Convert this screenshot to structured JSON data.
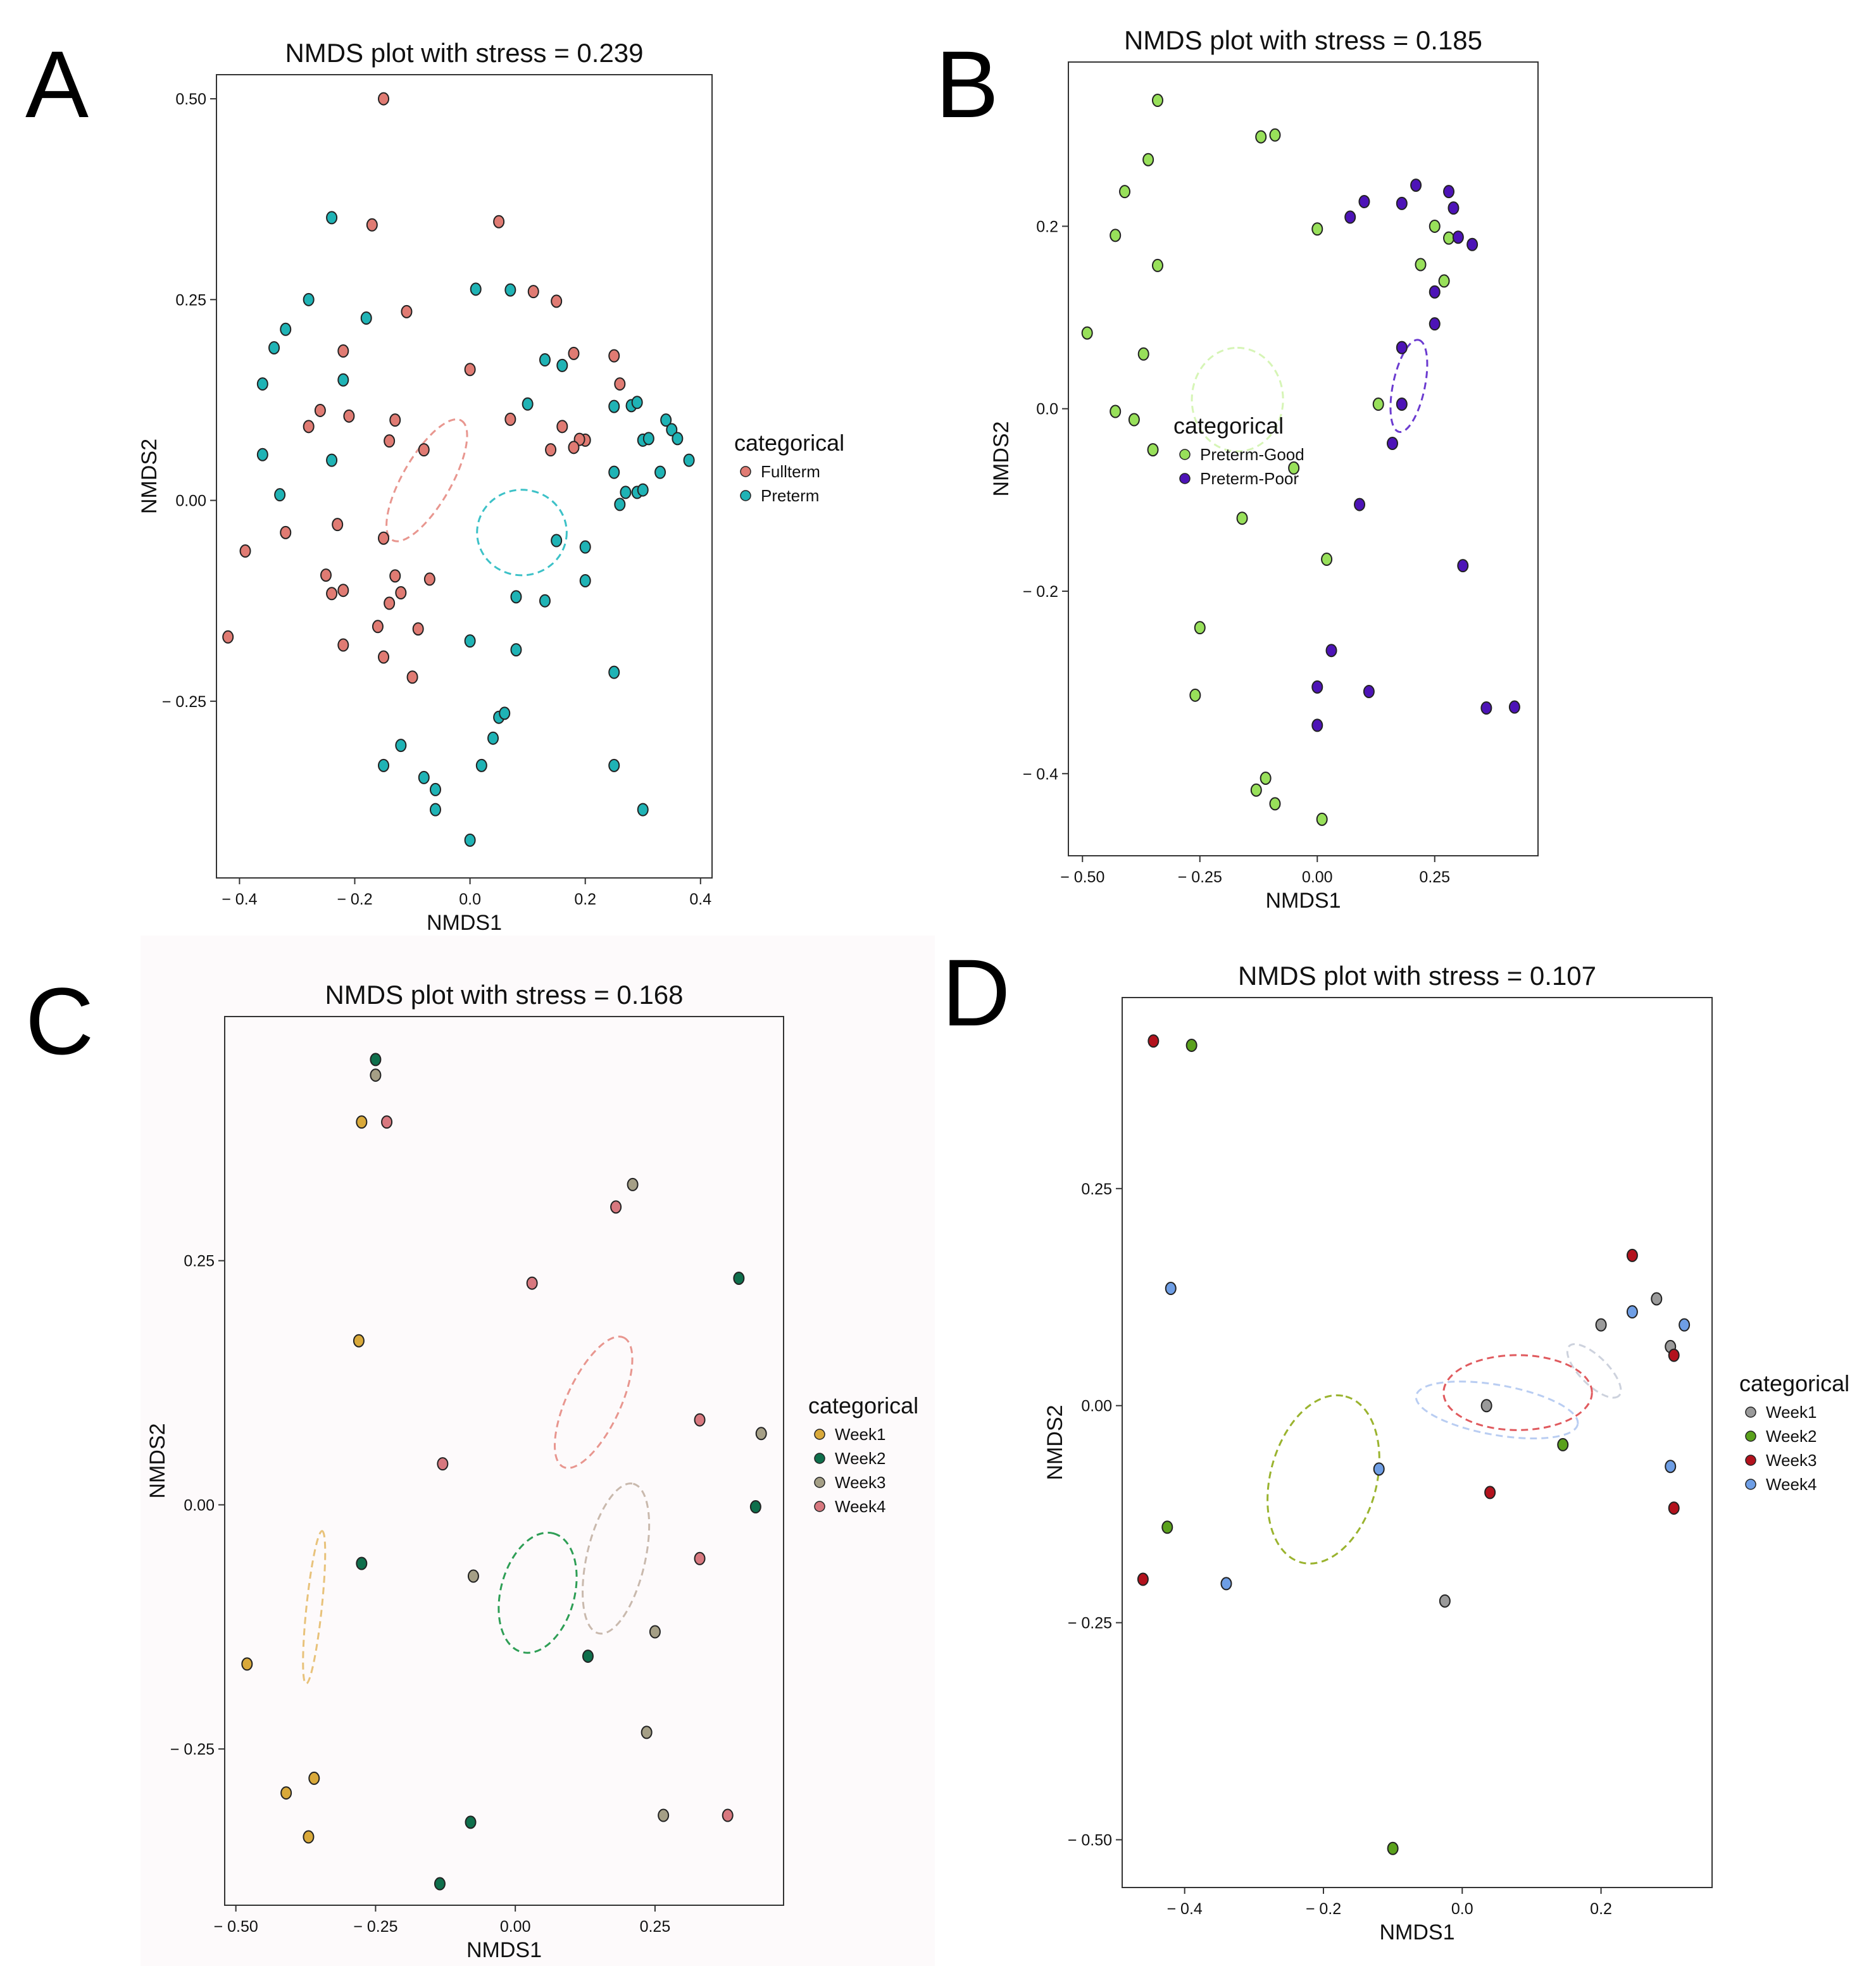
{
  "chart_data": [
    {
      "panel": "A",
      "type": "scatter",
      "title": "NMDS plot with stress = 0.239",
      "xlabel": "NMDS1",
      "ylabel": "NMDS2",
      "xlim": [
        -0.44,
        0.42
      ],
      "ylim": [
        -0.47,
        0.53
      ],
      "xticks": [
        -0.4,
        -0.2,
        0.0,
        0.2,
        0.4
      ],
      "yticks": [
        -0.25,
        0.0,
        0.25,
        0.5
      ],
      "xtick_labels": [
        "− 0.4",
        "− 0.2",
        "0.0",
        "0.2",
        "0.4"
      ],
      "ytick_labels": [
        "− 0.25",
        "0.00",
        "0.25",
        "0.50"
      ],
      "legend": {
        "title": "categorical",
        "entries": [
          "Fullterm",
          "Preterm"
        ]
      },
      "series": [
        {
          "name": "Fullterm",
          "color": "#e07b73",
          "points": [
            [
              -0.15,
              0.5
            ],
            [
              -0.17,
              0.343
            ],
            [
              0.05,
              0.347
            ],
            [
              -0.11,
              0.235
            ],
            [
              0.0,
              0.163
            ],
            [
              0.11,
              0.26
            ],
            [
              0.15,
              0.248
            ],
            [
              -0.22,
              0.186
            ],
            [
              -0.26,
              0.112
            ],
            [
              -0.28,
              0.092
            ],
            [
              -0.21,
              0.105
            ],
            [
              -0.13,
              0.1
            ],
            [
              -0.14,
              0.074
            ],
            [
              -0.08,
              0.063
            ],
            [
              0.07,
              0.101
            ],
            [
              0.16,
              0.092
            ],
            [
              0.18,
              0.183
            ],
            [
              0.2,
              0.075
            ],
            [
              0.25,
              0.18
            ],
            [
              0.26,
              0.145
            ],
            [
              0.14,
              0.063
            ],
            [
              0.19,
              0.076
            ],
            [
              0.18,
              0.066
            ],
            [
              -0.32,
              -0.04
            ],
            [
              -0.39,
              -0.063
            ],
            [
              -0.42,
              -0.17
            ],
            [
              -0.23,
              -0.03
            ],
            [
              -0.15,
              -0.047
            ],
            [
              -0.25,
              -0.093
            ],
            [
              -0.24,
              -0.116
            ],
            [
              -0.22,
              -0.112
            ],
            [
              -0.13,
              -0.094
            ],
            [
              -0.07,
              -0.098
            ],
            [
              -0.12,
              -0.115
            ],
            [
              -0.14,
              -0.128
            ],
            [
              -0.16,
              -0.157
            ],
            [
              -0.09,
              -0.16
            ],
            [
              -0.22,
              -0.18
            ],
            [
              -0.15,
              -0.195
            ],
            [
              -0.1,
              -0.22
            ]
          ]
        },
        {
          "name": "Preterm",
          "color": "#1fb3b5",
          "points": [
            [
              -0.24,
              0.352
            ],
            [
              -0.28,
              0.25
            ],
            [
              -0.32,
              0.213
            ],
            [
              -0.34,
              0.19
            ],
            [
              -0.36,
              0.145
            ],
            [
              -0.18,
              0.227
            ],
            [
              -0.22,
              0.15
            ],
            [
              -0.24,
              0.05
            ],
            [
              -0.36,
              0.057
            ],
            [
              -0.33,
              0.007
            ],
            [
              0.01,
              0.263
            ],
            [
              0.07,
              0.262
            ],
            [
              0.13,
              0.175
            ],
            [
              0.1,
              0.12
            ],
            [
              0.16,
              0.168
            ],
            [
              0.25,
              0.117
            ],
            [
              0.28,
              0.118
            ],
            [
              0.29,
              0.122
            ],
            [
              0.3,
              0.075
            ],
            [
              0.25,
              0.035
            ],
            [
              0.31,
              0.077
            ],
            [
              0.34,
              0.1
            ],
            [
              0.35,
              0.088
            ],
            [
              0.36,
              0.077
            ],
            [
              0.38,
              0.05
            ],
            [
              0.33,
              0.035
            ],
            [
              0.27,
              0.01
            ],
            [
              0.29,
              0.01
            ],
            [
              0.26,
              -0.005
            ],
            [
              0.3,
              0.013
            ],
            [
              0.2,
              -0.058
            ],
            [
              0.15,
              -0.05
            ],
            [
              0.13,
              -0.125
            ],
            [
              0.08,
              -0.12
            ],
            [
              0.2,
              -0.1
            ],
            [
              0.0,
              -0.175
            ],
            [
              0.08,
              -0.186
            ],
            [
              -0.15,
              -0.33
            ],
            [
              -0.12,
              -0.305
            ],
            [
              -0.08,
              -0.345
            ],
            [
              -0.06,
              -0.36
            ],
            [
              -0.06,
              -0.385
            ],
            [
              0.05,
              -0.27
            ],
            [
              0.06,
              -0.265
            ],
            [
              0.04,
              -0.296
            ],
            [
              0.02,
              -0.33
            ],
            [
              0.0,
              -0.423
            ],
            [
              0.25,
              -0.214
            ],
            [
              0.25,
              -0.33
            ],
            [
              0.3,
              -0.385
            ]
          ]
        }
      ],
      "ellipses": [
        {
          "group": "Fullterm",
          "color": "#e8968f",
          "cx": -0.075,
          "cy": 0.025,
          "rx": 0.1,
          "ry": 0.035,
          "angle": 60
        },
        {
          "group": "Preterm",
          "color": "#3cc1c7",
          "cx": 0.09,
          "cy": -0.04,
          "rx": 0.065,
          "ry": 0.062,
          "angle": 0
        }
      ]
    },
    {
      "panel": "B",
      "type": "scatter",
      "title": "NMDS plot with stress = 0.185",
      "xlabel": "NMDS1",
      "ylabel": "NMDS2",
      "xlim": [
        -0.53,
        0.47
      ],
      "ylim": [
        -0.49,
        0.38
      ],
      "xticks": [
        -0.5,
        -0.25,
        0.0,
        0.25
      ],
      "yticks": [
        -0.4,
        -0.2,
        0.0,
        0.2
      ],
      "xtick_labels": [
        "− 0.50",
        "− 0.25",
        "0.00",
        "0.25"
      ],
      "ytick_labels": [
        "− 0.4",
        "− 0.2",
        "0.0",
        "0.2"
      ],
      "legend": {
        "title": "categorical",
        "entries": [
          "Preterm-Good",
          "Preterm-Poor"
        ]
      },
      "series": [
        {
          "name": "Preterm-Good",
          "color": "#98e05a",
          "points": [
            [
              -0.34,
              0.338
            ],
            [
              -0.36,
              0.273
            ],
            [
              -0.41,
              0.238
            ],
            [
              -0.43,
              0.19
            ],
            [
              -0.34,
              0.157
            ],
            [
              -0.12,
              0.298
            ],
            [
              -0.09,
              0.3
            ],
            [
              0.0,
              0.197
            ],
            [
              -0.49,
              0.083
            ],
            [
              -0.37,
              0.06
            ],
            [
              -0.43,
              -0.003
            ],
            [
              -0.39,
              -0.012
            ],
            [
              -0.35,
              -0.045
            ],
            [
              -0.05,
              -0.065
            ],
            [
              0.25,
              0.2
            ],
            [
              0.28,
              0.187
            ],
            [
              0.22,
              0.158
            ],
            [
              0.27,
              0.14
            ],
            [
              0.13,
              0.005
            ],
            [
              -0.16,
              -0.12
            ],
            [
              0.02,
              -0.165
            ],
            [
              -0.25,
              -0.24
            ],
            [
              -0.26,
              -0.314
            ],
            [
              -0.11,
              -0.405
            ],
            [
              -0.13,
              -0.418
            ],
            [
              -0.09,
              -0.433
            ],
            [
              0.01,
              -0.45
            ]
          ]
        },
        {
          "name": "Preterm-Poor",
          "color": "#4d13b7",
          "points": [
            [
              0.07,
              0.21
            ],
            [
              0.1,
              0.227
            ],
            [
              0.18,
              0.225
            ],
            [
              0.21,
              0.245
            ],
            [
              0.28,
              0.238
            ],
            [
              0.29,
              0.22
            ],
            [
              0.3,
              0.188
            ],
            [
              0.33,
              0.18
            ],
            [
              0.25,
              0.128
            ],
            [
              0.25,
              0.093
            ],
            [
              0.18,
              0.067
            ],
            [
              0.18,
              0.005
            ],
            [
              0.16,
              -0.038
            ],
            [
              0.09,
              -0.105
            ],
            [
              0.31,
              -0.172
            ],
            [
              0.03,
              -0.265
            ],
            [
              0.0,
              -0.305
            ],
            [
              0.11,
              -0.31
            ],
            [
              0.0,
              -0.347
            ],
            [
              0.36,
              -0.328
            ],
            [
              0.42,
              -0.327
            ]
          ]
        }
      ],
      "ellipses": [
        {
          "group": "Preterm-Good",
          "color": "#d6f5b6",
          "cx": -0.17,
          "cy": 0.01,
          "rx": 0.075,
          "ry": 0.066,
          "angle": 90
        },
        {
          "group": "Preterm-Poor",
          "color": "#6b3bd0",
          "cx": 0.195,
          "cy": 0.025,
          "rx": 0.068,
          "ry": 0.023,
          "angle": 78
        }
      ]
    },
    {
      "panel": "C",
      "type": "scatter",
      "title": "NMDS plot with stress = 0.168",
      "xlabel": "NMDS1",
      "ylabel": "NMDS2",
      "xlim": [
        -0.52,
        0.48
      ],
      "ylim": [
        -0.41,
        0.5
      ],
      "xticks": [
        -0.5,
        -0.25,
        0.0,
        0.25
      ],
      "yticks": [
        -0.25,
        0.0,
        0.25
      ],
      "xtick_labels": [
        "− 0.50",
        "− 0.25",
        "0.00",
        "0.25"
      ],
      "ytick_labels": [
        "− 0.25",
        "0.00",
        "0.25"
      ],
      "legend": {
        "title": "categorical",
        "entries": [
          "Week1",
          "Week2",
          "Week3",
          "Week4"
        ]
      },
      "series": [
        {
          "name": "Week1",
          "color": "#d9a93a",
          "points": [
            [
              -0.275,
              0.392
            ],
            [
              -0.28,
              0.168
            ],
            [
              -0.48,
              -0.163
            ],
            [
              -0.41,
              -0.295
            ],
            [
              -0.36,
              -0.28
            ],
            [
              -0.37,
              -0.34
            ]
          ]
        },
        {
          "name": "Week2",
          "color": "#0f6f4c",
          "points": [
            [
              -0.25,
              0.456
            ],
            [
              0.4,
              0.232
            ],
            [
              -0.275,
              -0.06
            ],
            [
              0.43,
              -0.002
            ],
            [
              0.13,
              -0.155
            ],
            [
              -0.08,
              -0.325
            ],
            [
              -0.135,
              -0.388
            ]
          ]
        },
        {
          "name": "Week3",
          "color": "#a59f86",
          "points": [
            [
              -0.25,
              0.44
            ],
            [
              0.21,
              0.328
            ],
            [
              0.44,
              0.073
            ],
            [
              -0.075,
              -0.073
            ],
            [
              0.25,
              -0.13
            ],
            [
              0.235,
              -0.233
            ],
            [
              0.265,
              -0.318
            ]
          ]
        },
        {
          "name": "Week4",
          "color": "#d8787f",
          "points": [
            [
              -0.23,
              0.392
            ],
            [
              0.18,
              0.305
            ],
            [
              0.03,
              0.227
            ],
            [
              0.33,
              0.087
            ],
            [
              -0.13,
              0.042
            ],
            [
              0.33,
              -0.055
            ],
            [
              0.38,
              -0.318
            ]
          ]
        }
      ],
      "ellipses": [
        {
          "group": "Week1",
          "color": "#e8c27a",
          "cx": -0.36,
          "cy": -0.105,
          "rx": 0.1,
          "ry": 0.01,
          "angle": 84
        },
        {
          "group": "Week2",
          "color": "#2e9e55",
          "cx": 0.04,
          "cy": -0.09,
          "rx": 0.08,
          "ry": 0.048,
          "angle": 75
        },
        {
          "group": "Week3",
          "color": "#c9b9ad",
          "cx": 0.18,
          "cy": -0.055,
          "rx": 0.1,
          "ry": 0.038,
          "angle": 77
        },
        {
          "group": "Week4",
          "color": "#e8968f",
          "cx": 0.14,
          "cy": 0.105,
          "rx": 0.093,
          "ry": 0.035,
          "angle": 65
        }
      ]
    },
    {
      "panel": "D",
      "type": "scatter",
      "title": "NMDS plot with stress = 0.107",
      "xlabel": "NMDS1",
      "ylabel": "NMDS2",
      "xlim": [
        -0.49,
        0.36
      ],
      "ylim": [
        -0.555,
        0.47
      ],
      "xticks": [
        -0.4,
        -0.2,
        0.0,
        0.2
      ],
      "yticks": [
        -0.5,
        -0.25,
        0.0,
        0.25
      ],
      "xtick_labels": [
        "− 0.4",
        "− 0.2",
        "0.0",
        "0.2"
      ],
      "ytick_labels": [
        "− 0.50",
        "− 0.25",
        "0.00",
        "0.25"
      ],
      "legend": {
        "title": "categorical",
        "entries": [
          "Week1",
          "Week2",
          "Week3",
          "Week4"
        ]
      },
      "series": [
        {
          "name": "Week1",
          "color": "#9a9a9a",
          "points": [
            [
              0.2,
              0.093
            ],
            [
              0.28,
              0.123
            ],
            [
              0.3,
              0.068
            ],
            [
              0.035,
              0.0
            ],
            [
              -0.025,
              -0.225
            ]
          ]
        },
        {
          "name": "Week2",
          "color": "#5aa11c",
          "points": [
            [
              -0.39,
              0.415
            ],
            [
              0.145,
              -0.045
            ],
            [
              -0.425,
              -0.14
            ],
            [
              -0.1,
              -0.51
            ]
          ]
        },
        {
          "name": "Week3",
          "color": "#b3121d",
          "points": [
            [
              -0.445,
              0.42
            ],
            [
              0.245,
              0.173
            ],
            [
              0.305,
              0.058
            ],
            [
              0.04,
              -0.1
            ],
            [
              0.305,
              -0.118
            ],
            [
              -0.46,
              -0.2
            ]
          ]
        },
        {
          "name": "Week4",
          "color": "#6e9ee5",
          "points": [
            [
              -0.42,
              0.135
            ],
            [
              0.245,
              0.108
            ],
            [
              0.32,
              0.093
            ],
            [
              -0.12,
              -0.073
            ],
            [
              0.3,
              -0.07
            ],
            [
              -0.34,
              -0.205
            ]
          ]
        }
      ],
      "ellipses": [
        {
          "group": "Week1",
          "color": "#cdd2dd",
          "cx": 0.19,
          "cy": 0.04,
          "rx": 0.045,
          "ry": 0.018,
          "angle": -45
        },
        {
          "group": "Week2",
          "color": "#9ab32e",
          "cx": -0.2,
          "cy": -0.085,
          "rx": 0.11,
          "ry": 0.068,
          "angle": 75
        },
        {
          "group": "Week3",
          "color": "#e05a5e",
          "cx": 0.08,
          "cy": 0.015,
          "rx": 0.095,
          "ry": 0.048,
          "angle": 0
        },
        {
          "group": "Week4",
          "color": "#b9cdf2",
          "cx": 0.05,
          "cy": -0.005,
          "rx": 0.105,
          "ry": 0.032,
          "angle": -10
        }
      ]
    }
  ]
}
